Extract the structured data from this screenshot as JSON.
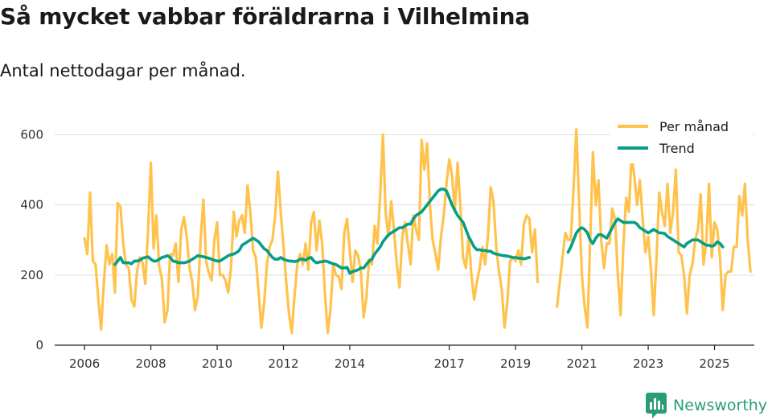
{
  "header": {
    "title": "Så mycket vabbar föräldrarna i Vilhelmina",
    "subtitle": "Antal nettodagar per månad."
  },
  "brand": {
    "name": "Newsworthy",
    "logo_icon": "bar-chart-speech-bubble-icon"
  },
  "colors": {
    "monthly": "#ffc34d",
    "trend": "#069e87",
    "grid": "#dddddd",
    "axis": "#222222"
  },
  "chart_data": {
    "type": "line",
    "title": "Så mycket vabbar föräldrarna i Vilhelmina",
    "subtitle": "Antal nettodagar per månad.",
    "xlabel": "",
    "ylabel": "",
    "x_unit": "year (decimal, month = year + (m-1)/12)",
    "xlim": [
      2005.1,
      2026.2
    ],
    "ylim": [
      0,
      640
    ],
    "x_ticks": [
      "2006",
      "2008",
      "2010",
      "2012",
      "2014",
      "2017",
      "2019",
      "2021",
      "2023",
      "2025"
    ],
    "y_ticks": [
      "0",
      "200",
      "400",
      "600"
    ],
    "grid": "horizontal",
    "legend_position": "top-right",
    "series": [
      {
        "name": "Per månad",
        "color": "#ffc34d",
        "x_start": 2006.0,
        "step": 0.0833333,
        "values": [
          305,
          260,
          435,
          240,
          230,
          130,
          45,
          180,
          285,
          230,
          260,
          150,
          405,
          395,
          290,
          230,
          220,
          130,
          110,
          210,
          250,
          235,
          175,
          330,
          520,
          275,
          370,
          225,
          190,
          65,
          100,
          260,
          255,
          290,
          180,
          330,
          365,
          310,
          220,
          180,
          100,
          140,
          300,
          415,
          240,
          205,
          185,
          300,
          350,
          200,
          200,
          185,
          150,
          220,
          380,
          310,
          355,
          370,
          320,
          455,
          380,
          270,
          250,
          150,
          50,
          120,
          230,
          280,
          300,
          370,
          495,
          380,
          280,
          180,
          90,
          35,
          140,
          230,
          260,
          230,
          290,
          215,
          350,
          380,
          270,
          355,
          290,
          150,
          35,
          100,
          230,
          200,
          195,
          160,
          320,
          360,
          270,
          180,
          270,
          255,
          215,
          80,
          135,
          245,
          230,
          340,
          290,
          430,
          600,
          375,
          310,
          410,
          330,
          230,
          165,
          310,
          350,
          290,
          230,
          370,
          330,
          300,
          585,
          500,
          575,
          400,
          300,
          260,
          215,
          310,
          370,
          460,
          530,
          485,
          380,
          520,
          400,
          250,
          220,
          310,
          200,
          130,
          180,
          220,
          280,
          230,
          310,
          450,
          410,
          280,
          210,
          160,
          50,
          120,
          240,
          250,
          240,
          270,
          230,
          345,
          370,
          360,
          265,
          330,
          180,
          null,
          null,
          null,
          null,
          null,
          null,
          110,
          180,
          250,
          320,
          300,
          300,
          450,
          615,
          400,
          200,
          110,
          50,
          300,
          550,
          400,
          470,
          300,
          220,
          290,
          290,
          390,
          360,
          200,
          85,
          280,
          420,
          380,
          540,
          480,
          400,
          470,
          360,
          265,
          310,
          215,
          85,
          250,
          435,
          380,
          340,
          460,
          320,
          380,
          500,
          265,
          255,
          200,
          90,
          200,
          230,
          300,
          330,
          430,
          230,
          290,
          460,
          250,
          350,
          330,
          250,
          100,
          200,
          210,
          210,
          280,
          280,
          425,
          370,
          460,
          300,
          210
        ]
      },
      {
        "name": "Trend",
        "color": "#069e87",
        "x_start": 2006.917,
        "step": 0.0833333,
        "values": [
          230,
          240,
          250,
          235,
          235,
          235,
          232,
          240,
          240,
          242,
          248,
          250,
          252,
          245,
          240,
          240,
          245,
          250,
          252,
          255,
          250,
          240,
          238,
          235,
          235,
          235,
          237,
          240,
          245,
          250,
          255,
          254,
          252,
          250,
          248,
          245,
          242,
          240,
          240,
          245,
          250,
          255,
          258,
          260,
          264,
          270,
          285,
          290,
          295,
          300,
          305,
          300,
          295,
          285,
          275,
          270,
          260,
          250,
          245,
          245,
          250,
          245,
          242,
          240,
          240,
          238,
          240,
          245,
          245,
          242,
          248,
          250,
          240,
          235,
          237,
          238,
          240,
          238,
          235,
          232,
          230,
          225,
          220,
          220,
          222,
          205,
          210,
          212,
          215,
          220,
          220,
          230,
          240,
          245,
          260,
          270,
          280,
          295,
          305,
          315,
          320,
          325,
          330,
          335,
          335,
          340,
          345,
          345,
          360,
          370,
          375,
          380,
          390,
          400,
          410,
          420,
          430,
          440,
          445,
          445,
          440,
          420,
          400,
          385,
          370,
          360,
          350,
          330,
          310,
          295,
          280,
          272,
          272,
          270,
          270,
          268,
          268,
          262,
          260,
          258,
          256,
          255,
          254,
          252,
          250,
          250,
          248,
          248,
          246,
          248,
          250
        ]
      },
      {
        "name": "Trend",
        "color": "#069e87",
        "x_start": 2020.583,
        "step": 0.0833333,
        "values": [
          265,
          280,
          300,
          320,
          330,
          335,
          330,
          320,
          300,
          290,
          305,
          315,
          315,
          310,
          305,
          320,
          335,
          350,
          360,
          355,
          350,
          350,
          350,
          350,
          350,
          345,
          335,
          330,
          325,
          320,
          325,
          330,
          325,
          320,
          320,
          318,
          310,
          305,
          300,
          295,
          290,
          285,
          280,
          290,
          295,
          300,
          300,
          300,
          295,
          290,
          285,
          285,
          282,
          285,
          295,
          290,
          280
        ]
      }
    ]
  }
}
